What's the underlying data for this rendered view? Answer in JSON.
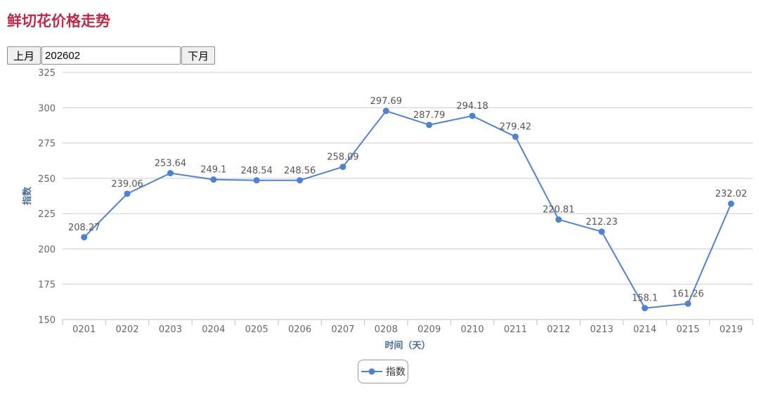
{
  "page": {
    "title": "鲜切花价格走势"
  },
  "controls": {
    "prev_label": "上月",
    "month_value": "202602",
    "next_label": "下月"
  },
  "colors": {
    "title": "#c0284a",
    "series": "#4f81d0",
    "axis_title": "#4a6d93",
    "grid": "#cccccc"
  },
  "chart_data": {
    "type": "line",
    "title": "",
    "xlabel": "时间（天）",
    "ylabel": "指数",
    "ylim": [
      150,
      325
    ],
    "yticks": [
      150,
      175,
      200,
      225,
      250,
      275,
      300,
      325
    ],
    "grid": true,
    "legend_position": "bottom-center",
    "categories": [
      "0201",
      "0202",
      "0203",
      "0204",
      "0205",
      "0206",
      "0207",
      "0208",
      "0209",
      "0210",
      "0211",
      "0212",
      "0213",
      "0214",
      "0215",
      "0219"
    ],
    "series": [
      {
        "name": "指数",
        "values": [
          208.27,
          239.06,
          253.64,
          249.1,
          248.54,
          248.56,
          258.09,
          297.69,
          287.79,
          294.18,
          279.42,
          220.81,
          212.23,
          158.1,
          161.26,
          232.02
        ],
        "labels": [
          "208.27",
          "239.06",
          "253.64",
          "249.1",
          "248.54",
          "248.56",
          "258.09",
          "297.69",
          "287.79",
          "294.18",
          "279.42",
          "220.81",
          "212.23",
          "158.1",
          "161.26",
          "232.02"
        ]
      }
    ]
  }
}
